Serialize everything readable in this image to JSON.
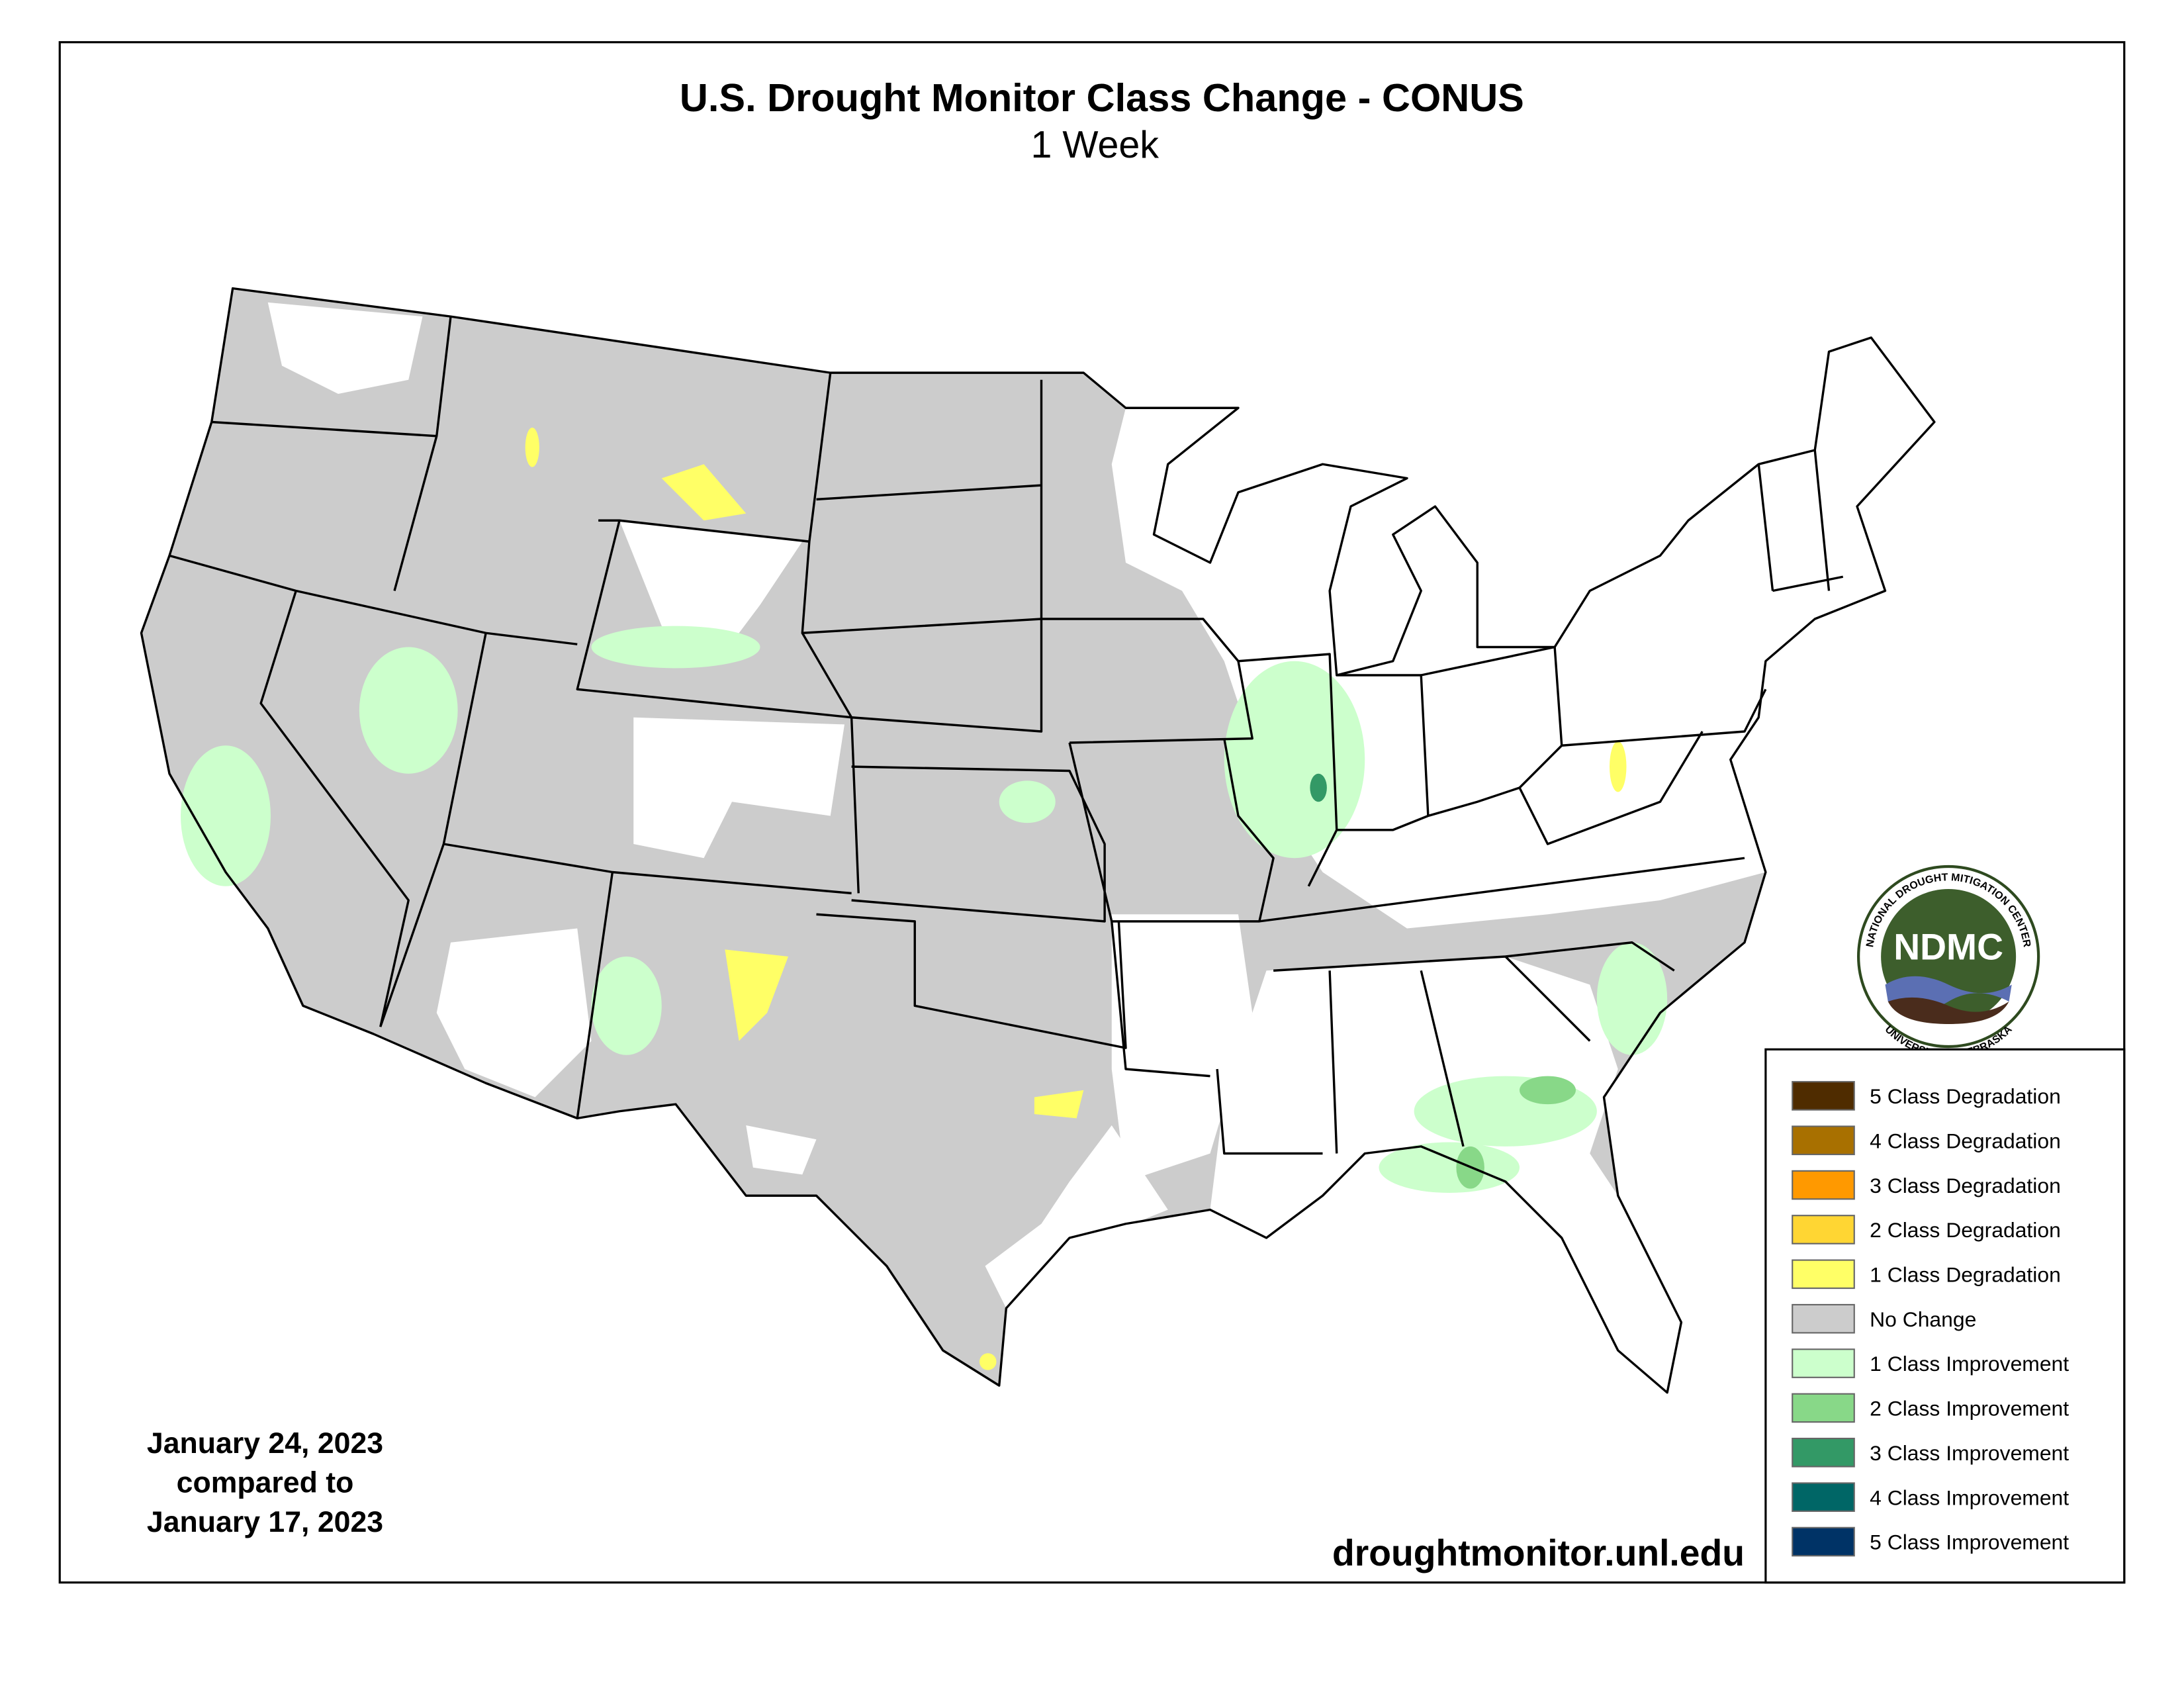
{
  "header": {
    "title": "U.S. Drought Monitor Class Change - CONUS",
    "subtitle": "1 Week"
  },
  "date_note": {
    "lines": [
      "January 24, 2023",
      "compared to",
      "January 17, 2023"
    ]
  },
  "source": "droughtmonitor.unl.edu",
  "logo": {
    "acronym": "NDMC",
    "top_text": "NATIONAL DROUGHT MITIGATION CENTER",
    "bottom_text": "UNIVERSITY OF NEBRASKA"
  },
  "legend": {
    "items": [
      {
        "label": "5 Class Degradation",
        "color": "#4f2c00"
      },
      {
        "label": "4 Class Degradation",
        "color": "#a87000"
      },
      {
        "label": "3 Class Degradation",
        "color": "#ff9900"
      },
      {
        "label": "2 Class Degradation",
        "color": "#ffd633"
      },
      {
        "label": "1 Class Degradation",
        "color": "#ffff66"
      },
      {
        "label": "No Change",
        "color": "#cccccc"
      },
      {
        "label": "1 Class Improvement",
        "color": "#ccffcc"
      },
      {
        "label": "2 Class Improvement",
        "color": "#88d888"
      },
      {
        "label": "3 Class Improvement",
        "color": "#339966"
      },
      {
        "label": "4 Class Improvement",
        "color": "#006666"
      },
      {
        "label": "5 Class Improvement",
        "color": "#003366"
      }
    ]
  }
}
